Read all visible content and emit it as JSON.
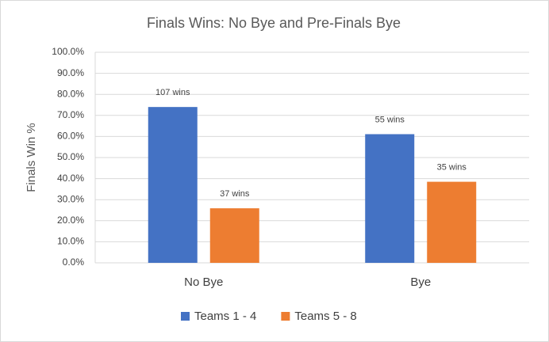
{
  "chart_data": {
    "type": "bar",
    "title": "Finals Wins: No Bye and Pre-Finals Bye",
    "y_label": "Finals Win %",
    "categories": [
      "No Bye",
      "Bye"
    ],
    "series": [
      {
        "name": "Teams 1 - 4",
        "color": "#4472c4",
        "values": [
          74.0,
          61.1
        ],
        "labels": [
          "107 wins",
          "55 wins"
        ]
      },
      {
        "name": "Teams 5 - 8",
        "color": "#ed7d31",
        "values": [
          25.9,
          38.5
        ],
        "labels": [
          "37 wins",
          "35 wins"
        ]
      }
    ],
    "ylim": [
      0,
      100
    ],
    "yticks": [
      {
        "value": 0,
        "label": "0.0%"
      },
      {
        "value": 10,
        "label": "10.0%"
      },
      {
        "value": 20,
        "label": "20.0%"
      },
      {
        "value": 30,
        "label": "30.0%"
      },
      {
        "value": 40,
        "label": "40.0%"
      },
      {
        "value": 50,
        "label": "50.0%"
      },
      {
        "value": 60,
        "label": "60.0%"
      },
      {
        "value": 70,
        "label": "70.0%"
      },
      {
        "value": 80,
        "label": "80.0%"
      },
      {
        "value": 90,
        "label": "90.0%"
      },
      {
        "value": 100,
        "label": "100.0%"
      }
    ],
    "grid": true,
    "legend": "bottom"
  }
}
